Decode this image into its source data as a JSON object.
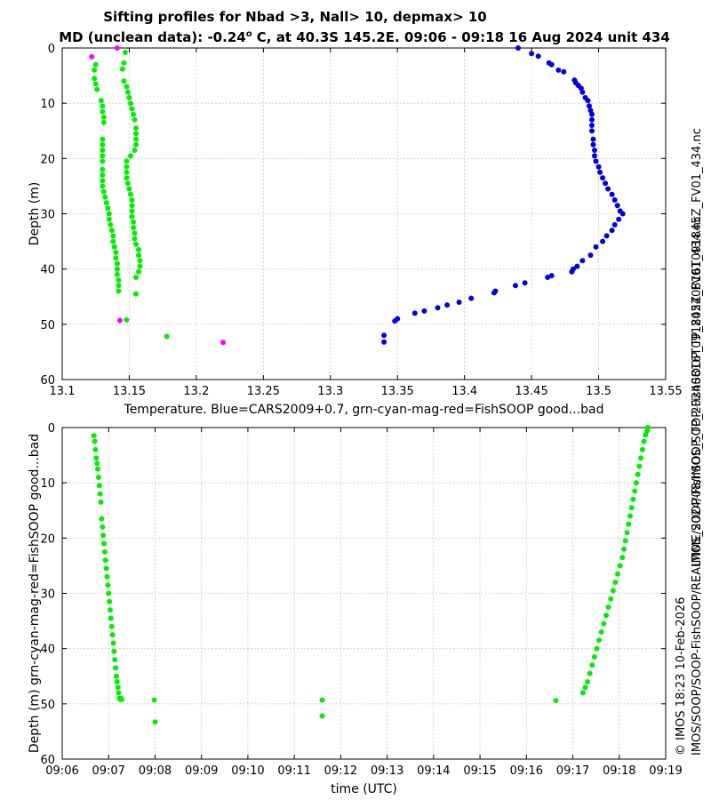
{
  "title_line1": "Sifting profiles for Nbad >3, Nall> 10, depmax> 10",
  "title_line2_pre": "MD (unclean data): -0.24",
  "title_degree": "o",
  "title_line2_post": " C, at 40.3S 145.2E. 09:06 - 09:18 16 Aug 2024 unit 434",
  "right_vertical_label": "IMOS_SOOP-FishSOOP_TP_20240816T091845Z_FV01_434.nc",
  "bottom_right_vertical_line1": "© IMOS 18:23 10-Feb-2026",
  "bottom_right_vertical_line2": "IMOS/SOOP/SOOP-FishSOOP/REALTIME/2024/08/IMOS_SOOP-FishSOOP_TP_20240816T091845Z_FV01_434.nc",
  "colors": {
    "blue": "#0000e0",
    "green": "#00ee00",
    "magenta": "#ff00ff"
  },
  "chart_data": [
    {
      "type": "scatter",
      "xlabel": "Temperature. Blue=CARS2009+0.7, grn-cyan-mag-red=FishSOOP good...bad",
      "ylabel": "Depth (m)",
      "xlim": [
        13.1,
        13.55
      ],
      "ylim": [
        0,
        60
      ],
      "y_reversed": true,
      "grid": true,
      "xticks": [
        13.1,
        13.15,
        13.2,
        13.25,
        13.3,
        13.35,
        13.4,
        13.45,
        13.5,
        13.55
      ],
      "xtick_labels": [
        "13.1",
        "13.15",
        "13.2",
        "13.25",
        "13.3",
        "13.35",
        "13.4",
        "13.45",
        "13.5",
        "13.55"
      ],
      "yticks": [
        0,
        10,
        20,
        30,
        40,
        50,
        60
      ],
      "ytick_labels": [
        "0",
        "10",
        "20",
        "30",
        "40",
        "50",
        "60"
      ],
      "series": [
        {
          "color": "blue",
          "x": [
            13.44,
            13.45,
            13.455,
            13.463,
            13.465,
            13.47,
            13.474,
            13.482,
            13.483,
            13.485,
            13.487,
            13.488,
            13.49,
            13.492,
            13.493,
            13.494,
            13.495,
            13.495,
            13.495,
            13.495,
            13.496,
            13.496,
            13.497,
            13.497,
            13.498,
            13.5,
            13.501,
            13.503,
            13.505,
            13.507,
            13.51,
            13.512,
            13.514,
            13.516,
            13.518,
            13.515,
            13.512,
            13.51,
            13.506,
            13.503,
            13.498,
            13.494,
            13.488,
            13.484,
            13.481,
            13.48,
            13.465,
            13.462,
            13.445,
            13.438,
            13.423,
            13.422,
            13.405,
            13.396,
            13.387,
            13.38,
            13.37,
            13.363,
            13.35,
            13.348,
            13.34,
            13.34
          ],
          "y": [
            0,
            1.0,
            1.5,
            2.7,
            3.0,
            4.0,
            4.3,
            5.8,
            6.3,
            6.8,
            7.3,
            8.0,
            9.0,
            9.5,
            10.5,
            11.3,
            12.0,
            13.0,
            14.0,
            15.0,
            16.5,
            17.5,
            18.5,
            19.5,
            20.5,
            21.5,
            22.5,
            23.5,
            24.5,
            25.5,
            26.5,
            27.5,
            28.5,
            29.5,
            30.0,
            31.0,
            32.0,
            33.0,
            34.0,
            35.0,
            36.0,
            37.5,
            38.5,
            39.5,
            40.0,
            40.5,
            41.2,
            41.5,
            42.5,
            43.0,
            44.0,
            44.3,
            45.3,
            46.0,
            46.5,
            47.0,
            47.6,
            48.0,
            49.0,
            49.4,
            52.0,
            53.2
          ]
        },
        {
          "color": "green",
          "x": [
            13.125,
            13.124,
            13.124,
            13.125,
            13.126,
            13.129,
            13.13,
            13.13,
            13.131,
            13.131,
            13.13,
            13.13,
            13.13,
            13.13,
            13.13,
            13.13,
            13.13,
            13.13,
            13.13,
            13.131,
            13.132,
            13.133,
            13.134,
            13.135,
            13.135,
            13.136,
            13.137,
            13.138,
            13.138,
            13.139,
            13.14,
            13.14,
            13.141,
            13.141,
            13.141,
            13.142,
            13.142,
            13.142,
            13.147,
            13.146,
            13.145,
            13.146,
            13.148,
            13.149,
            13.15,
            13.151,
            13.152,
            13.153,
            13.154,
            13.155,
            13.155,
            13.155,
            13.155,
            13.154,
            13.151,
            13.148,
            13.148,
            13.148,
            13.148,
            13.149,
            13.15,
            13.151,
            13.152,
            13.152,
            13.152,
            13.152,
            13.153,
            13.153,
            13.154,
            13.154,
            13.155,
            13.157,
            13.157,
            13.158,
            13.158,
            13.157,
            13.155,
            13.155,
            13.148,
            13.178
          ],
          "y": [
            3.0,
            4.0,
            5.5,
            6.5,
            7.5,
            9.5,
            10.5,
            11.5,
            12.5,
            13.5,
            16.5,
            17.5,
            18.5,
            19.5,
            20.5,
            22.0,
            23.0,
            24.0,
            25.0,
            26.0,
            27.0,
            28.0,
            29.0,
            30.0,
            31.0,
            32.0,
            33.0,
            34.0,
            35.0,
            36.0,
            37.0,
            38.0,
            39.0,
            40.0,
            41.0,
            42.0,
            43.0,
            44.0,
            0.8,
            2.7,
            3.8,
            6.0,
            7.0,
            8.0,
            9.0,
            10.0,
            11.0,
            12.0,
            13.0,
            14.5,
            15.5,
            16.5,
            17.5,
            18.5,
            19.5,
            20.5,
            21.5,
            22.5,
            23.5,
            24.5,
            25.5,
            26.5,
            27.5,
            28.5,
            29.5,
            30.5,
            31.5,
            32.5,
            33.5,
            34.5,
            35.5,
            36.5,
            37.5,
            38.5,
            39.5,
            40.5,
            41.5,
            44.5,
            49.2,
            52.2
          ]
        },
        {
          "color": "magenta",
          "x": [
            13.122,
            13.141,
            13.143,
            13.22
          ],
          "y": [
            1.6,
            0.0,
            49.3,
            53.3
          ]
        }
      ]
    },
    {
      "type": "scatter",
      "xlabel": "time (UTC)",
      "ylabel": "Depth (m) grn-cyan-mag-red=FishSOOP good...bad",
      "ylim": [
        0,
        60
      ],
      "y_reversed": true,
      "grid": true,
      "x_unit": "minutes",
      "xlim": [
        "09:06",
        "09:19"
      ],
      "xticks": [
        "09:06",
        "09:07",
        "09:08",
        "09:09",
        "09:10",
        "09:11",
        "09:12",
        "09:13",
        "09:14",
        "09:15",
        "09:16",
        "09:17",
        "09:18",
        "09:19"
      ],
      "yticks": [
        0,
        10,
        20,
        30,
        40,
        50,
        60
      ],
      "ytick_labels": [
        "0",
        "10",
        "20",
        "30",
        "40",
        "50",
        "60"
      ],
      "series": [
        {
          "color": "green",
          "x": [
            "09:06:41",
            "09:06:42",
            "09:06:43",
            "09:06:44",
            "09:06:45",
            "09:06:46",
            "09:06:47",
            "09:06:48",
            "09:06:49",
            "09:06:50",
            "09:06:51",
            "09:06:52",
            "09:06:53",
            "09:06:54",
            "09:06:55",
            "09:06:56",
            "09:06:57",
            "09:06:58",
            "09:06:59",
            "09:07:00",
            "09:07:01",
            "09:07:02",
            "09:07:03",
            "09:07:04",
            "09:07:05",
            "09:07:06",
            "09:07:07",
            "09:07:08",
            "09:07:09",
            "09:07:10",
            "09:07:11",
            "09:07:12",
            "09:07:13",
            "09:07:14",
            "09:07:15",
            "09:07:16",
            "09:07:17",
            "09:07:59",
            "09:08:00",
            "09:11:36",
            "09:11:36",
            "09:16:38",
            "09:17:13",
            "09:17:16",
            "09:17:19",
            "09:17:22",
            "09:17:25",
            "09:17:28",
            "09:17:31",
            "09:17:34",
            "09:17:37",
            "09:17:40",
            "09:17:43",
            "09:17:46",
            "09:17:49",
            "09:17:52",
            "09:17:55",
            "09:17:58",
            "09:18:01",
            "09:18:04",
            "09:18:06",
            "09:18:08",
            "09:18:10",
            "09:18:12",
            "09:18:14",
            "09:18:16",
            "09:18:18",
            "09:18:20",
            "09:18:22",
            "09:18:24",
            "09:18:26",
            "09:18:28",
            "09:18:30",
            "09:18:32",
            "09:18:34",
            "09:18:36",
            "09:18:37"
          ],
          "y": [
            1.5,
            2.5,
            4.0,
            5.5,
            6.5,
            7.5,
            9.0,
            10.5,
            12.0,
            13.5,
            16.5,
            18.0,
            19.5,
            21.0,
            22.5,
            24.0,
            25.5,
            27.0,
            28.5,
            30.0,
            31.5,
            33.0,
            34.5,
            36.0,
            37.5,
            39.0,
            40.5,
            42.0,
            43.5,
            45.0,
            46.0,
            47.0,
            48.0,
            49.0,
            49.2,
            49.0,
            49.2,
            49.3,
            53.3,
            49.3,
            52.2,
            49.4,
            48.0,
            47.0,
            46.0,
            44.5,
            43.0,
            41.5,
            40.0,
            38.5,
            37.0,
            35.5,
            34.0,
            32.5,
            31.0,
            29.5,
            28.0,
            26.5,
            25.0,
            23.5,
            22.0,
            20.5,
            19.0,
            17.5,
            16.0,
            14.5,
            13.0,
            11.5,
            10.0,
            8.5,
            7.0,
            5.5,
            4.0,
            2.5,
            1.3,
            0.6,
            0.0
          ]
        }
      ]
    }
  ]
}
